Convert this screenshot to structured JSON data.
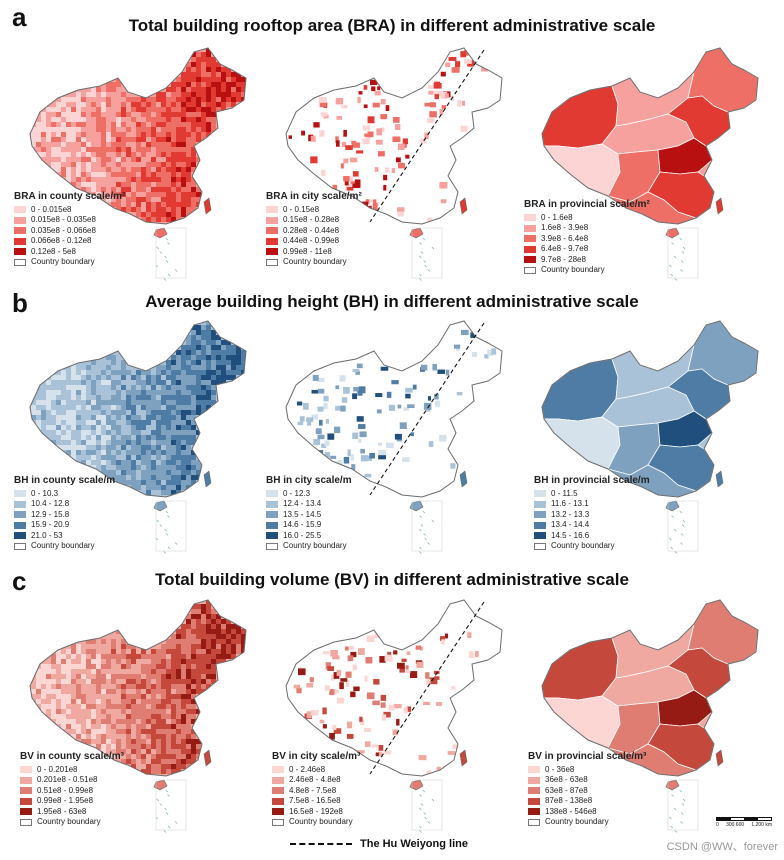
{
  "sections": [
    {
      "letter": "a",
      "title": "Total building rooftop area (BRA) in different administrative scale",
      "maps": [
        {
          "legend_title": "BRA in county scale/m²",
          "classes": [
            "0 - 0.015e8",
            "0.015e8 - 0.035e8",
            "0.035e8 - 0.066e8",
            "0.066e8 - 0.12e8",
            "0.12e8 - 5e8"
          ],
          "boundary": "Country boundary",
          "hu_line": false
        },
        {
          "legend_title": "BRA in city scale/m²",
          "classes": [
            "0 - 0.15e8",
            "0.15e8 - 0.28e8",
            "0.28e8 - 0.44e8",
            "0.44e8 - 0.99e8",
            "0.99e8 - 11e8"
          ],
          "boundary": "Country boundary",
          "hu_line": true
        },
        {
          "legend_title": "BRA in provincial scale/m²",
          "classes": [
            "0 - 1.6e8",
            "1.6e8 - 3.9e8",
            "3.9e8 - 6.4e8",
            "6.4e8 - 9.7e8",
            "9.7e8 - 28e8"
          ],
          "boundary": "Country boundary",
          "hu_line": false
        }
      ],
      "palette": [
        "#fcd4d4",
        "#f6a19d",
        "#ee6f66",
        "#e03a32",
        "#b81010"
      ]
    },
    {
      "letter": "b",
      "title": "Average building height (BH) in different administrative scale",
      "maps": [
        {
          "legend_title": "BH in county scale/m",
          "classes": [
            "0 - 10.3",
            "10.4 - 12.8",
            "12.9 - 15.8",
            "15.9 - 20.9",
            "21.0 - 53"
          ],
          "boundary": "Country boundary",
          "hu_line": false
        },
        {
          "legend_title": "BH in city scale/m",
          "classes": [
            "0 - 12.3",
            "12.4 - 13.4",
            "13.5 - 14.5",
            "14.6 - 15.9",
            "16.0 - 25.5"
          ],
          "boundary": "Country boundary",
          "hu_line": true
        },
        {
          "legend_title": "BH in provincial scale/m",
          "classes": [
            "0 - 11.5",
            "11.6 - 13.1",
            "13.2 - 13.3",
            "13.4 - 14.4",
            "14.5 - 16.6"
          ],
          "boundary": "Country boundary",
          "hu_line": false
        }
      ],
      "palette": [
        "#d5e2ec",
        "#a9c2d8",
        "#7ea1c0",
        "#4f7ca5",
        "#214f7d"
      ]
    },
    {
      "letter": "c",
      "title": "Total building volume (BV) in different administrative scale",
      "maps": [
        {
          "legend_title": "BV in county scale/m³",
          "classes": [
            "0 - 0.201e8",
            "0.201e8 - 0.51e8",
            "0.51e8 - 0.99e8",
            "0.99e8 - 1.95e8",
            "1.95e8 - 63e8"
          ],
          "boundary": "Country boundary",
          "hu_line": false
        },
        {
          "legend_title": "BV in city scale/m³",
          "classes": [
            "0 - 2.46e8",
            "2.46e8 - 4.8e8",
            "4.8e8 - 7.5e8",
            "7.5e8 - 16.5e8",
            "16.5e8 - 192e8"
          ],
          "boundary": "Country boundary",
          "hu_line": true
        },
        {
          "legend_title": "BV in provincial scale/m³",
          "classes": [
            "0 - 36e8",
            "36e8 - 63e8",
            "63e8 - 87e8",
            "87e8 - 138e8",
            "138e8 - 546e8"
          ],
          "boundary": "Country boundary",
          "hu_line": false
        }
      ],
      "palette": [
        "#fbd6d3",
        "#f0a9a1",
        "#e07d72",
        "#c5483c",
        "#961b14"
      ]
    }
  ],
  "footer": {
    "hu_line_label": "The Hu Weiyong line",
    "scale_bar_labels": [
      "0",
      "300 600",
      "1,200 km"
    ],
    "watermark": "CSDN @WW、forever"
  }
}
